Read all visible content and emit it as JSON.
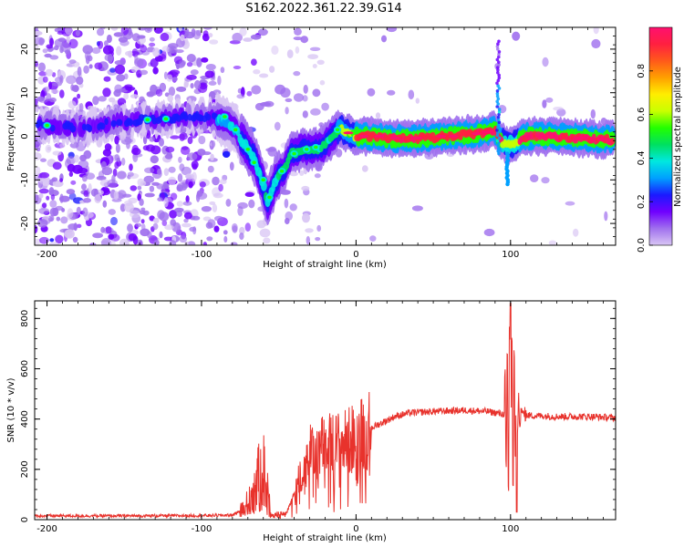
{
  "figure_title": "S162.2022.361.22.39.G14",
  "chart_data": [
    {
      "type": "heatmap",
      "name": "spectrogram",
      "xlabel": "Height of straight line (km)",
      "ylabel": "Frequency (Hz)",
      "xlim": [
        -208,
        168
      ],
      "ylim": [
        -25,
        25
      ],
      "xticks": [
        -200,
        -100,
        0,
        100
      ],
      "yticks": [
        -20,
        -10,
        0,
        10,
        20
      ],
      "colorbar": {
        "label": "Normalized spectral amplitude",
        "range": [
          0,
          1
        ],
        "ticks": [
          0.0,
          0.2,
          0.4,
          0.6,
          0.8
        ],
        "colormap": [
          "#d9c6f4",
          "#a070ee",
          "#7000ff",
          "#1a1aff",
          "#00a0ff",
          "#00e8e0",
          "#00e060",
          "#22ff00",
          "#c8ff00",
          "#ffee00",
          "#ffa000",
          "#ff5a1a",
          "#ff2040",
          "#ff1070"
        ]
      },
      "ridge": {
        "description_points": [
          [
            -200,
            2.5
          ],
          [
            -175,
            2
          ],
          [
            -150,
            3.5
          ],
          [
            -135,
            3.8
          ],
          [
            -125,
            4
          ],
          [
            -110,
            4.5
          ],
          [
            -95,
            4.5
          ],
          [
            -85,
            3.5
          ],
          [
            -78,
            1.5
          ],
          [
            -72,
            -2
          ],
          [
            -66,
            -5
          ],
          [
            -62,
            -9
          ],
          [
            -57,
            -15
          ],
          [
            -52,
            -10
          ],
          [
            -47,
            -8
          ],
          [
            -42,
            -4
          ],
          [
            -35,
            -3
          ],
          [
            -28,
            -3
          ],
          [
            -22,
            -2.5
          ],
          [
            -16,
            -0.5
          ],
          [
            -11,
            1.8
          ],
          [
            -6,
            0.8
          ],
          [
            0,
            0
          ],
          [
            10,
            0
          ],
          [
            20,
            -0.5
          ],
          [
            40,
            -0.5
          ],
          [
            60,
            0
          ],
          [
            75,
            0.5
          ],
          [
            85,
            1
          ],
          [
            90,
            1.5
          ],
          [
            93,
            -1
          ],
          [
            98,
            -2
          ],
          [
            103,
            -1.5
          ],
          [
            110,
            0
          ],
          [
            130,
            0
          ],
          [
            150,
            -0.5
          ],
          [
            168,
            -0.8
          ]
        ],
        "spike": {
          "x": 92,
          "y_range": [
            -4,
            22
          ]
        },
        "spike2": {
          "x": 98,
          "y_range": [
            -11,
            -4
          ]
        }
      }
    },
    {
      "type": "line",
      "name": "snr",
      "xlabel": "Height of straight line (km)",
      "ylabel": "SNR (10 * v/v)",
      "xlim": [
        -208,
        168
      ],
      "ylim": [
        0,
        870
      ],
      "xticks": [
        -200,
        -100,
        0,
        100
      ],
      "yticks": [
        0,
        200,
        400,
        600,
        800
      ],
      "color": "#e8322c",
      "envelope": [
        [
          -208,
          15
        ],
        [
          -150,
          15
        ],
        [
          -100,
          16
        ],
        [
          -80,
          18
        ],
        [
          -72,
          45
        ],
        [
          -66,
          120
        ],
        [
          -60,
          200
        ],
        [
          -55,
          20
        ],
        [
          -45,
          25
        ],
        [
          -38,
          140
        ],
        [
          -30,
          260
        ],
        [
          -22,
          290
        ],
        [
          -12,
          300
        ],
        [
          -5,
          310
        ],
        [
          5,
          350
        ],
        [
          15,
          380
        ],
        [
          25,
          410
        ],
        [
          35,
          425
        ],
        [
          50,
          430
        ],
        [
          70,
          435
        ],
        [
          85,
          430
        ],
        [
          95,
          420
        ],
        [
          100,
          420
        ],
        [
          110,
          415
        ],
        [
          130,
          410
        ],
        [
          150,
          410
        ],
        [
          168,
          405
        ]
      ],
      "burst": {
        "x_range": [
          96,
          110
        ],
        "peak": 860,
        "trough": 30
      }
    }
  ]
}
